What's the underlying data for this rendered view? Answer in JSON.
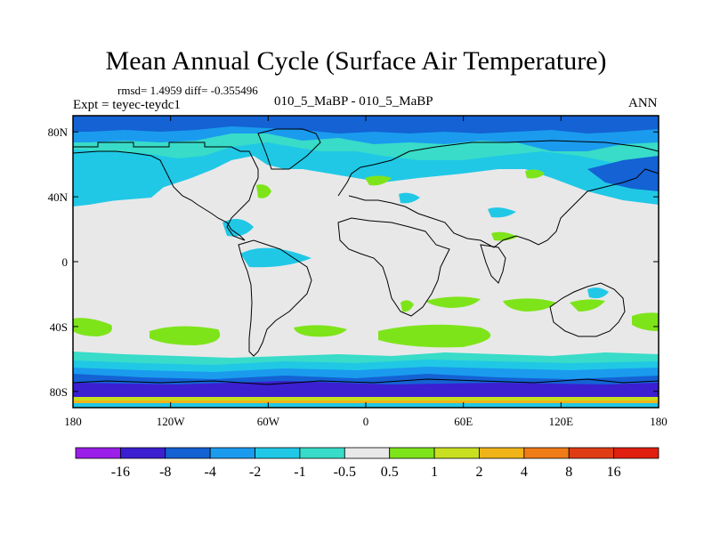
{
  "chart_data": {
    "type": "heatmap",
    "title": "Mean Annual Cycle (Surface Air Temperature)",
    "stats_line": "rmsd= 1.4959 diff= -0.355496",
    "experiment": "Expt = teyec-teydc1",
    "subtitle": "010_5_MaBP - 010_5_MaBP",
    "season": "ANN",
    "x_ticks": [
      "180",
      "120W",
      "60W",
      "0",
      "60E",
      "120E",
      "180"
    ],
    "x_tick_values": [
      -180,
      -120,
      -60,
      0,
      60,
      120,
      180
    ],
    "y_ticks": [
      "80N",
      "40N",
      "0",
      "40S",
      "80S"
    ],
    "y_tick_values": [
      80,
      40,
      0,
      -40,
      -80
    ],
    "xlim": [
      -180,
      180
    ],
    "ylim": [
      -90,
      90
    ],
    "colorbar": {
      "labels": [
        "-16",
        "-8",
        "-4",
        "-2",
        "-1",
        "-0.5",
        "0.5",
        "1",
        "2",
        "4",
        "8",
        "16"
      ],
      "colors": [
        "#9b1fe8",
        "#3b1fd0",
        "#1462d4",
        "#1a9bee",
        "#20c8e6",
        "#38dcc8",
        "#e8e8e8",
        "#7ee41a",
        "#c8e020",
        "#f0b418",
        "#f07c18",
        "#e03c14",
        "#e02010"
      ]
    },
    "fields": {
      "background": "#e8e8e8",
      "note": "temperature difference field; mostly -0.5..0.5 (grey), negative bands at high latitudes, positive patches in subtropics"
    }
  }
}
